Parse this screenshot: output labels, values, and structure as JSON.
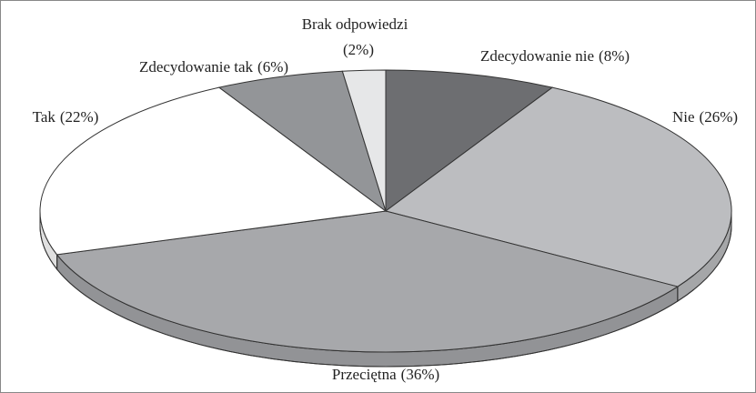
{
  "chart_data": {
    "type": "pie",
    "categories": [
      "Zdecydowanie nie",
      "Nie",
      "Przeciętna",
      "Tak",
      "Zdecydowanie tak",
      "Brak odpowiedzi"
    ],
    "values": [
      8,
      26,
      36,
      22,
      6,
      2
    ],
    "value_labels": [
      "(8%)",
      "(26%)",
      "(36%)",
      "(22%)",
      "(6%)",
      "(2%)"
    ],
    "colors": [
      "#6d6e71",
      "#bcbdc0",
      "#a7a8ab",
      "#ffffff",
      "#939598",
      "#e6e7e8"
    ]
  }
}
